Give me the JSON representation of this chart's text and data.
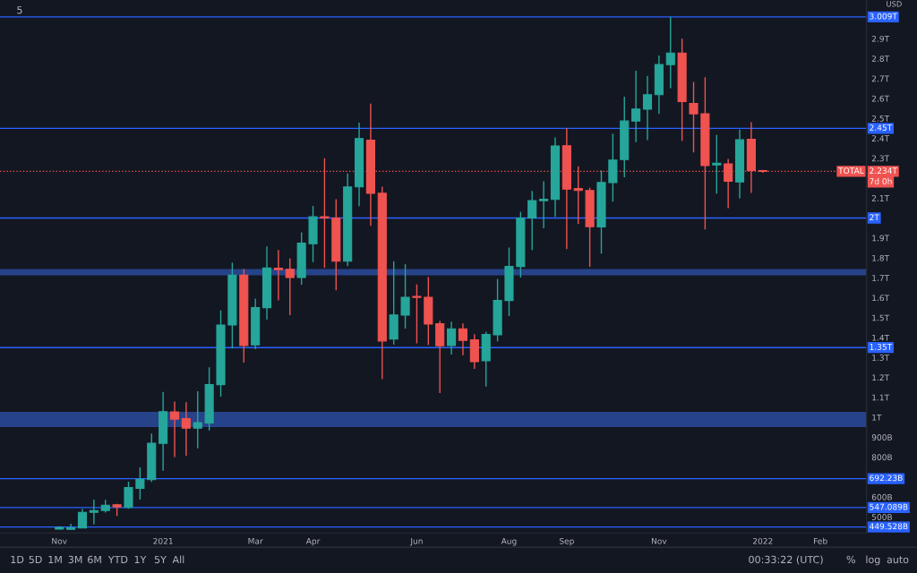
{
  "chart_data": {
    "type": "candlestick",
    "x": [
      "2020-11-02",
      "2020-11-09",
      "2020-11-16",
      "2020-11-23",
      "2020-11-30",
      "2020-12-07",
      "2020-12-14",
      "2020-12-21",
      "2020-12-28",
      "2021-01-04",
      "2021-01-11",
      "2021-01-18",
      "2021-01-25",
      "2021-02-01",
      "2021-02-08",
      "2021-02-15",
      "2021-02-22",
      "2021-03-01",
      "2021-03-08",
      "2021-03-15",
      "2021-03-22",
      "2021-03-29",
      "2021-04-05",
      "2021-04-12",
      "2021-04-19",
      "2021-04-26",
      "2021-05-03",
      "2021-05-10",
      "2021-05-17",
      "2021-05-24",
      "2021-05-31",
      "2021-06-07",
      "2021-06-14",
      "2021-06-21",
      "2021-06-28",
      "2021-07-05",
      "2021-07-12",
      "2021-07-19",
      "2021-07-26",
      "2021-08-02",
      "2021-08-09",
      "2021-08-16",
      "2021-08-23",
      "2021-08-30",
      "2021-09-06",
      "2021-09-13",
      "2021-09-20",
      "2021-09-27",
      "2021-10-04",
      "2021-10-11",
      "2021-10-18",
      "2021-10-25",
      "2021-11-01",
      "2021-11-08",
      "2021-11-15",
      "2021-11-22",
      "2021-11-29",
      "2021-12-06",
      "2021-12-13",
      "2021-12-20",
      "2021-12-27",
      "2022-01-03"
    ],
    "ohlc": [
      [
        439000000000.0,
        453000000000.0,
        437000000000.0,
        448000000000.0
      ],
      [
        438000000000.0,
        466000000000.0,
        437000000000.0,
        445000000000.0
      ],
      [
        445000000000.0,
        541000000000.0,
        444000000000.0,
        523000000000.0
      ],
      [
        523000000000.0,
        587000000000.0,
        463000000000.0,
        532000000000.0
      ],
      [
        532000000000.0,
        586000000000.0,
        522000000000.0,
        559000000000.0
      ],
      [
        561000000000.0,
        566000000000.0,
        505000000000.0,
        550000000000.0
      ],
      [
        548000000000.0,
        677000000000.0,
        541000000000.0,
        647000000000.0
      ],
      [
        644000000000.0,
        749000000000.0,
        587000000000.0,
        689000000000.0
      ],
      [
        687000000000.0,
        919000000000.0,
        676000000000.0,
        870000000000.0
      ],
      [
        869000000000.0,
        1127000000000.0,
        732000000000.0,
        1028000000000.0
      ],
      [
        1027000000000.0,
        1079000000000.0,
        800000000000.0,
        991000000000.0
      ],
      [
        994000000000.0,
        1076000000000.0,
        807000000000.0,
        946000000000.0
      ],
      [
        946000000000.0,
        1131000000000.0,
        844000000000.0,
        973000000000.0
      ],
      [
        972000000000.0,
        1251000000000.0,
        934000000000.0,
        1164000000000.0
      ],
      [
        1163000000000.0,
        1537000000000.0,
        1103000000000.0,
        1463000000000.0
      ],
      [
        1463000000000.0,
        1776000000000.0,
        1345000000000.0,
        1713000000000.0
      ],
      [
        1713000000000.0,
        1744000000000.0,
        1275000000000.0,
        1360000000000.0
      ],
      [
        1363000000000.0,
        1596000000000.0,
        1342000000000.0,
        1550000000000.0
      ],
      [
        1550000000000.0,
        1857000000000.0,
        1490000000000.0,
        1749000000000.0
      ],
      [
        1748000000000.0,
        1839000000000.0,
        1587000000000.0,
        1741000000000.0
      ],
      [
        1743000000000.0,
        1798000000000.0,
        1513000000000.0,
        1701000000000.0
      ],
      [
        1701000000000.0,
        1928000000000.0,
        1665000000000.0,
        1874000000000.0
      ],
      [
        1871000000000.0,
        2061000000000.0,
        1779000000000.0,
        2006000000000.0
      ],
      [
        2006000000000.0,
        2300000000000.0,
        1750000000000.0,
        2000000000000.0
      ],
      [
        2000000000000.0,
        2094000000000.0,
        1637000000000.0,
        1783000000000.0
      ],
      [
        1783000000000.0,
        2224000000000.0,
        1759000000000.0,
        2156000000000.0
      ],
      [
        2156000000000.0,
        2478000000000.0,
        2060000000000.0,
        2399000000000.0
      ],
      [
        2391000000000.0,
        2574000000000.0,
        1961000000000.0,
        2124000000000.0
      ],
      [
        2124000000000.0,
        2157000000000.0,
        1191000000000.0,
        1383000000000.0
      ],
      [
        1393000000000.0,
        1783000000000.0,
        1365000000000.0,
        1514000000000.0
      ],
      [
        1513000000000.0,
        1768000000000.0,
        1445000000000.0,
        1602000000000.0
      ],
      [
        1607000000000.0,
        1667000000000.0,
        1371000000000.0,
        1602000000000.0
      ],
      [
        1602000000000.0,
        1704000000000.0,
        1363000000000.0,
        1468000000000.0
      ],
      [
        1470000000000.0,
        1483000000000.0,
        1122000000000.0,
        1359000000000.0
      ],
      [
        1360000000000.0,
        1480000000000.0,
        1315000000000.0,
        1444000000000.0
      ],
      [
        1444000000000.0,
        1471000000000.0,
        1311000000000.0,
        1386000000000.0
      ],
      [
        1389000000000.0,
        1417000000000.0,
        1243000000000.0,
        1279000000000.0
      ],
      [
        1284000000000.0,
        1430000000000.0,
        1154000000000.0,
        1416000000000.0
      ],
      [
        1414000000000.0,
        1694000000000.0,
        1381000000000.0,
        1586000000000.0
      ],
      [
        1586000000000.0,
        1852000000000.0,
        1508000000000.0,
        1757000000000.0
      ],
      [
        1757000000000.0,
        2031000000000.0,
        1701000000000.0,
        2000000000000.0
      ],
      [
        2000000000000.0,
        2136000000000.0,
        1840000000000.0,
        2087000000000.0
      ],
      [
        2087000000000.0,
        2184000000000.0,
        1948000000000.0,
        2094000000000.0
      ],
      [
        2093000000000.0,
        2404000000000.0,
        2006000000000.0,
        2362000000000.0
      ],
      [
        2363000000000.0,
        2452000000000.0,
        1844000000000.0,
        2145000000000.0
      ],
      [
        2148000000000.0,
        2260000000000.0,
        1970000000000.0,
        2138000000000.0
      ],
      [
        2138000000000.0,
        2152000000000.0,
        1755000000000.0,
        1957000000000.0
      ],
      [
        1955000000000.0,
        2239000000000.0,
        1821000000000.0,
        2178000000000.0
      ],
      [
        2178000000000.0,
        2423000000000.0,
        2082000000000.0,
        2291000000000.0
      ],
      [
        2293000000000.0,
        2609000000000.0,
        2205000000000.0,
        2487000000000.0
      ],
      [
        2487000000000.0,
        2739000000000.0,
        2381000000000.0,
        2547000000000.0
      ],
      [
        2546000000000.0,
        2713000000000.0,
        2391000000000.0,
        2619000000000.0
      ],
      [
        2619000000000.0,
        2815000000000.0,
        2522000000000.0,
        2770000000000.0
      ],
      [
        2770000000000.0,
        3009000000000.0,
        2652000000000.0,
        2828000000000.0
      ],
      [
        2828000000000.0,
        2900000000000.0,
        2387000000000.0,
        2584000000000.0
      ],
      [
        2575000000000.0,
        2683000000000.0,
        2329000000000.0,
        2523000000000.0
      ],
      [
        2523000000000.0,
        2707000000000.0,
        1943000000000.0,
        2263000000000.0
      ],
      [
        2266000000000.0,
        2417000000000.0,
        2122000000000.0,
        2275000000000.0
      ],
      [
        2272000000000.0,
        2297000000000.0,
        2049000000000.0,
        2184000000000.0
      ],
      [
        2181000000000.0,
        2444000000000.0,
        2099000000000.0,
        2393000000000.0
      ],
      [
        2395000000000.0,
        2481000000000.0,
        2126000000000.0,
        2238000000000.0
      ],
      [
        2238000000000.0,
        2242000000000.0,
        2227000000000.0,
        2234000000000.0
      ]
    ],
    "colors": [
      "#26a69a",
      "#26a69a",
      "#26a69a",
      "#26a69a",
      "#26a69a",
      "#ef5350",
      "#26a69a",
      "#26a69a",
      "#26a69a",
      "#26a69a",
      "#ef5350",
      "#ef5350",
      "#26a69a",
      "#26a69a",
      "#26a69a",
      "#26a69a",
      "#ef5350",
      "#26a69a",
      "#26a69a",
      "#ef5350",
      "#ef5350",
      "#26a69a",
      "#26a69a",
      "#ef5350",
      "#ef5350",
      "#26a69a",
      "#26a69a",
      "#ef5350",
      "#ef5350",
      "#26a69a",
      "#26a69a",
      "#ef5350",
      "#ef5350",
      "#ef5350",
      "#26a69a",
      "#ef5350",
      "#ef5350",
      "#26a69a",
      "#26a69a",
      "#26a69a",
      "#26a69a",
      "#26a69a",
      "#26a69a",
      "#26a69a",
      "#ef5350",
      "#ef5350",
      "#ef5350",
      "#26a69a",
      "#26a69a",
      "#26a69a",
      "#26a69a",
      "#26a69a",
      "#26a69a",
      "#26a69a",
      "#ef5350",
      "#ef5350",
      "#ef5350",
      "#26a69a",
      "#ef5350",
      "#26a69a",
      "#ef5350",
      "#ef5350"
    ],
    "xlim": [
      "2020-09-27",
      "2022-03-07"
    ],
    "xticks": [
      {
        "value": "2020-11-02",
        "label": "Nov"
      },
      {
        "value": "2021-01-04",
        "label": "2021"
      },
      {
        "value": "2021-03-01",
        "label": "Mar"
      },
      {
        "value": "2021-04-05",
        "label": "Apr"
      },
      {
        "value": "2021-06-07",
        "label": "Jun"
      },
      {
        "value": "2021-08-02",
        "label": "Aug"
      },
      {
        "value": "2021-09-06",
        "label": "Sep"
      },
      {
        "value": "2021-11-01",
        "label": "Nov"
      },
      {
        "value": "2022-01-03",
        "label": "2022"
      },
      {
        "value": "2022-02-07",
        "label": "Feb"
      }
    ],
    "ylim": [
      420000000000.0,
      3094000000000.0
    ],
    "yticks": [
      {
        "value": 500000000000.0,
        "label": "500B"
      },
      {
        "value": 600000000000.0,
        "label": "600B"
      },
      {
        "value": 800000000000.0,
        "label": "800B"
      },
      {
        "value": 900000000000.0,
        "label": "900B"
      },
      {
        "value": 1000000000000.0,
        "label": "1T"
      },
      {
        "value": 1100000000000.0,
        "label": "1.1T"
      },
      {
        "value": 1200000000000.0,
        "label": "1.2T"
      },
      {
        "value": 1300000000000.0,
        "label": "1.3T"
      },
      {
        "value": 1400000000000.0,
        "label": "1.4T"
      },
      {
        "value": 1500000000000.0,
        "label": "1.5T"
      },
      {
        "value": 1600000000000.0,
        "label": "1.6T"
      },
      {
        "value": 1700000000000.0,
        "label": "1.7T"
      },
      {
        "value": 1800000000000.0,
        "label": "1.8T"
      },
      {
        "value": 1900000000000.0,
        "label": "1.9T"
      },
      {
        "value": 2100000000000.0,
        "label": "2.1T"
      },
      {
        "value": 2300000000000.0,
        "label": "2.3T"
      },
      {
        "value": 2400000000000.0,
        "label": "2.4T"
      },
      {
        "value": 2500000000000.0,
        "label": "2.5T"
      },
      {
        "value": 2600000000000.0,
        "label": "2.6T"
      },
      {
        "value": 2700000000000.0,
        "label": "2.7T"
      },
      {
        "value": 2800000000000.0,
        "label": "2.8T"
      },
      {
        "value": 2900000000000.0,
        "label": "2.9T"
      }
    ],
    "ref_lines": [
      {
        "axis": "y",
        "value": 3009000000000.0,
        "label": "3.009T",
        "color": "#2962ff"
      },
      {
        "axis": "y",
        "value": 2450000000000.0,
        "label": "2.45T",
        "color": "#2962ff"
      },
      {
        "axis": "y",
        "value": 2000000000000.0,
        "label": "2T",
        "color": "#2962ff"
      },
      {
        "axis": "y",
        "value": 1350000000000.0,
        "label": "1.35T",
        "color": "#2962ff"
      },
      {
        "axis": "y",
        "value": 692230000000.0,
        "label": "692.23B",
        "color": "#2962ff"
      },
      {
        "axis": "y",
        "value": 547089000000.0,
        "label": "547.089B",
        "color": "#2962ff"
      },
      {
        "axis": "y",
        "value": 449528000000.0,
        "label": "449.528B",
        "color": "#2962ff"
      },
      {
        "axis": "y",
        "value": 2234000000000.0,
        "label": "2.234T",
        "color": "#ef5350",
        "line_style": "dotted"
      }
    ],
    "bands": [
      {
        "axis": "y",
        "from": 1713000000000.0,
        "to": 1744000000000.0,
        "color": "#2a4a9a"
      },
      {
        "axis": "y",
        "from": 951000000000.0,
        "to": 1027000000000.0,
        "color": "#2a4a9a"
      }
    ],
    "annotations": [
      "5",
      "USD",
      "TOTAL",
      "7d 0h",
      "1D",
      "5D",
      "1M",
      "3M",
      "6M",
      "YTD",
      "1Y",
      "5Y",
      "All",
      "00:33:22 (UTC)",
      "%",
      "log",
      "auto"
    ],
    "legend": false
  }
}
